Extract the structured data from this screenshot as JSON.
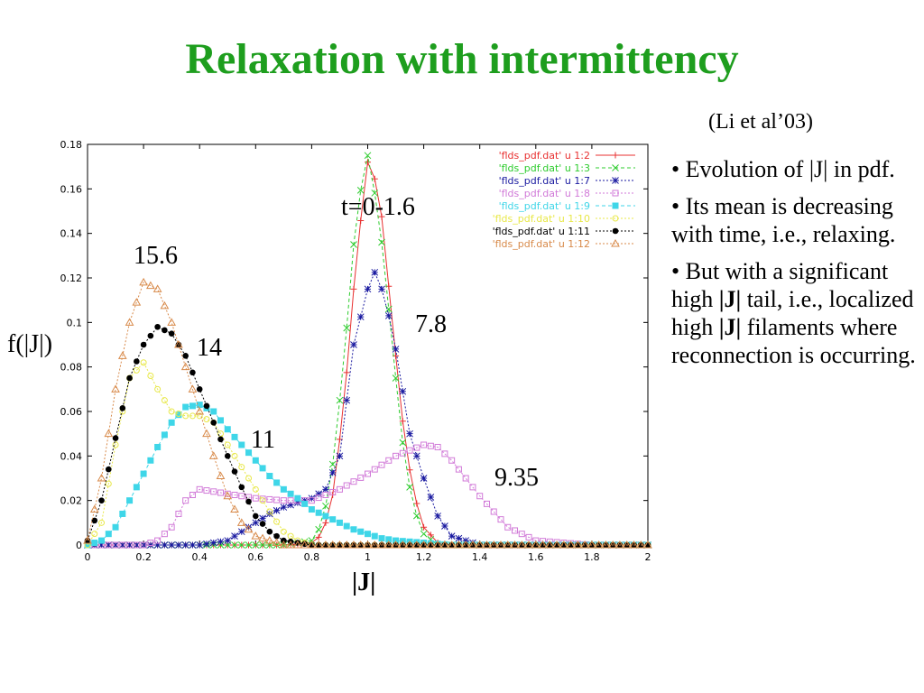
{
  "slide": {
    "title": "Relaxation with intermittency",
    "title_color": "#1e9e1e",
    "citation": "(Li et al’03)",
    "bullets": [
      {
        "parts": [
          {
            "text": "• Evolution of |J| in pdf.",
            "bold": false
          }
        ]
      },
      {
        "parts": [
          {
            "text": "• Its mean is decreasing with time, i.e., relaxing.",
            "bold": false
          }
        ]
      },
      {
        "parts": [
          {
            "text": "• But with a significant high ",
            "bold": false
          },
          {
            "text": "|J|",
            "bold": true
          },
          {
            "text": " tail, i.e., localized high ",
            "bold": false
          },
          {
            "text": "|J|",
            "bold": true
          },
          {
            "text": " filaments where reconnection is occurring.",
            "bold": false
          }
        ]
      }
    ],
    "ylabel": "f(|J|)",
    "xlabel": "|J|",
    "annotations": {
      "t": "t=0-1.6",
      "a156": "15.6",
      "a14": "14",
      "a11": "11",
      "a78": "7.8",
      "a935": "9.35"
    }
  },
  "chart_data": {
    "type": "line",
    "xlabel": "|J|",
    "ylabel": "f(|J|)",
    "xlim": [
      0,
      2
    ],
    "ylim": [
      0,
      0.18
    ],
    "x_ticks": [
      "0",
      "0.2",
      "0.4",
      "0.6",
      "0.8",
      "1",
      "1.2",
      "1.4",
      "1.6",
      "1.8",
      "2"
    ],
    "y_ticks": [
      "0",
      "0.02",
      "0.04",
      "0.06",
      "0.08",
      "0.1",
      "0.12",
      "0.14",
      "0.16",
      "0.18"
    ],
    "grid": false,
    "legend_position": "top-right",
    "series": [
      {
        "name": "'flds_pdf.dat' u 1:2",
        "color": "#e83030",
        "marker": "plus",
        "dash": "solid",
        "points": [
          [
            0,
            0
          ],
          [
            0.7,
            0
          ],
          [
            0.8,
            0.001
          ],
          [
            0.84,
            0.005
          ],
          [
            0.88,
            0.025
          ],
          [
            0.92,
            0.07
          ],
          [
            0.96,
            0.13
          ],
          [
            1.0,
            0.172
          ],
          [
            1.04,
            0.16
          ],
          [
            1.08,
            0.11
          ],
          [
            1.12,
            0.06
          ],
          [
            1.16,
            0.025
          ],
          [
            1.2,
            0.008
          ],
          [
            1.25,
            0.001
          ],
          [
            1.3,
            0
          ],
          [
            2,
            0
          ]
        ]
      },
      {
        "name": "'flds_pdf.dat' u 1:3",
        "color": "#2ecc2e",
        "marker": "x",
        "dash": "dashed",
        "points": [
          [
            0,
            0
          ],
          [
            0.7,
            0
          ],
          [
            0.8,
            0.002
          ],
          [
            0.84,
            0.01
          ],
          [
            0.88,
            0.04
          ],
          [
            0.92,
            0.09
          ],
          [
            0.96,
            0.15
          ],
          [
            1.0,
            0.175
          ],
          [
            1.04,
            0.148
          ],
          [
            1.08,
            0.1
          ],
          [
            1.12,
            0.05
          ],
          [
            1.16,
            0.018
          ],
          [
            1.2,
            0.005
          ],
          [
            1.25,
            0
          ],
          [
            2,
            0
          ]
        ]
      },
      {
        "name": "'flds_pdf.dat' u 1:7",
        "color": "#1a1aa0",
        "marker": "star",
        "dash": "dotted",
        "points": [
          [
            0,
            0
          ],
          [
            0.4,
            0
          ],
          [
            0.5,
            0.002
          ],
          [
            0.55,
            0.006
          ],
          [
            0.6,
            0.01
          ],
          [
            0.65,
            0.014
          ],
          [
            0.7,
            0.017
          ],
          [
            0.75,
            0.019
          ],
          [
            0.8,
            0.021
          ],
          [
            0.85,
            0.025
          ],
          [
            0.9,
            0.04
          ],
          [
            0.95,
            0.09
          ],
          [
            1.0,
            0.115
          ],
          [
            1.02,
            0.124
          ],
          [
            1.06,
            0.112
          ],
          [
            1.1,
            0.088
          ],
          [
            1.15,
            0.05
          ],
          [
            1.2,
            0.03
          ],
          [
            1.25,
            0.013
          ],
          [
            1.3,
            0.004
          ],
          [
            1.4,
            0
          ],
          [
            2,
            0
          ]
        ]
      },
      {
        "name": "'flds_pdf.dat' u 1:8",
        "color": "#d17ad8",
        "marker": "square",
        "dash": "dotted",
        "points": [
          [
            0,
            0
          ],
          [
            0.2,
            0
          ],
          [
            0.25,
            0.002
          ],
          [
            0.3,
            0.008
          ],
          [
            0.35,
            0.02
          ],
          [
            0.4,
            0.025
          ],
          [
            0.5,
            0.023
          ],
          [
            0.6,
            0.021
          ],
          [
            0.7,
            0.02
          ],
          [
            0.8,
            0.02
          ],
          [
            0.9,
            0.025
          ],
          [
            1.0,
            0.032
          ],
          [
            1.1,
            0.04
          ],
          [
            1.2,
            0.045
          ],
          [
            1.25,
            0.044
          ],
          [
            1.3,
            0.038
          ],
          [
            1.4,
            0.022
          ],
          [
            1.5,
            0.008
          ],
          [
            1.6,
            0.002
          ],
          [
            1.8,
            0
          ],
          [
            2,
            0
          ]
        ]
      },
      {
        "name": "'flds_pdf.dat' u 1:9",
        "color": "#3fd6e8",
        "marker": "filled-square",
        "dash": "dashed",
        "points": [
          [
            0,
            0
          ],
          [
            0.05,
            0.002
          ],
          [
            0.1,
            0.008
          ],
          [
            0.15,
            0.02
          ],
          [
            0.2,
            0.032
          ],
          [
            0.25,
            0.044
          ],
          [
            0.3,
            0.055
          ],
          [
            0.35,
            0.062
          ],
          [
            0.4,
            0.063
          ],
          [
            0.45,
            0.06
          ],
          [
            0.5,
            0.052
          ],
          [
            0.55,
            0.045
          ],
          [
            0.6,
            0.038
          ],
          [
            0.65,
            0.031
          ],
          [
            0.7,
            0.025
          ],
          [
            0.75,
            0.021
          ],
          [
            0.8,
            0.016
          ],
          [
            0.85,
            0.013
          ],
          [
            0.9,
            0.01
          ],
          [
            0.95,
            0.007
          ],
          [
            1.0,
            0.005
          ],
          [
            1.05,
            0.003
          ],
          [
            1.1,
            0.002
          ],
          [
            1.2,
            0.001
          ],
          [
            1.3,
            0
          ],
          [
            2,
            0
          ]
        ]
      },
      {
        "name": "'flds_pdf.dat' u 1:10",
        "color": "#e8e84a",
        "marker": "circle",
        "dash": "dotted",
        "points": [
          [
            0,
            0
          ],
          [
            0.05,
            0.01
          ],
          [
            0.1,
            0.045
          ],
          [
            0.15,
            0.075
          ],
          [
            0.2,
            0.082
          ],
          [
            0.25,
            0.07
          ],
          [
            0.3,
            0.06
          ],
          [
            0.35,
            0.058
          ],
          [
            0.4,
            0.058
          ],
          [
            0.45,
            0.055
          ],
          [
            0.5,
            0.045
          ],
          [
            0.55,
            0.035
          ],
          [
            0.6,
            0.025
          ],
          [
            0.65,
            0.015
          ],
          [
            0.7,
            0.006
          ],
          [
            0.75,
            0.002
          ],
          [
            0.8,
            0
          ],
          [
            2,
            0
          ]
        ]
      },
      {
        "name": "'flds_pdf.dat' u 1:11",
        "color": "#000000",
        "marker": "filled-circle",
        "dash": "dotted",
        "points": [
          [
            0,
            0.002
          ],
          [
            0.05,
            0.02
          ],
          [
            0.1,
            0.048
          ],
          [
            0.15,
            0.075
          ],
          [
            0.2,
            0.09
          ],
          [
            0.25,
            0.098
          ],
          [
            0.3,
            0.095
          ],
          [
            0.35,
            0.085
          ],
          [
            0.4,
            0.07
          ],
          [
            0.45,
            0.055
          ],
          [
            0.5,
            0.04
          ],
          [
            0.55,
            0.026
          ],
          [
            0.6,
            0.013
          ],
          [
            0.65,
            0.006
          ],
          [
            0.7,
            0.002
          ],
          [
            0.8,
            0
          ],
          [
            2,
            0
          ]
        ]
      },
      {
        "name": "'flds_pdf.dat' u 1:12",
        "color": "#d88a4a",
        "marker": "triangle",
        "dash": "dotted",
        "points": [
          [
            0,
            0.002
          ],
          [
            0.05,
            0.03
          ],
          [
            0.1,
            0.07
          ],
          [
            0.15,
            0.1
          ],
          [
            0.2,
            0.118
          ],
          [
            0.25,
            0.115
          ],
          [
            0.3,
            0.1
          ],
          [
            0.35,
            0.08
          ],
          [
            0.4,
            0.06
          ],
          [
            0.45,
            0.04
          ],
          [
            0.5,
            0.022
          ],
          [
            0.55,
            0.01
          ],
          [
            0.6,
            0.004
          ],
          [
            0.7,
            0
          ],
          [
            2,
            0
          ]
        ]
      }
    ]
  }
}
